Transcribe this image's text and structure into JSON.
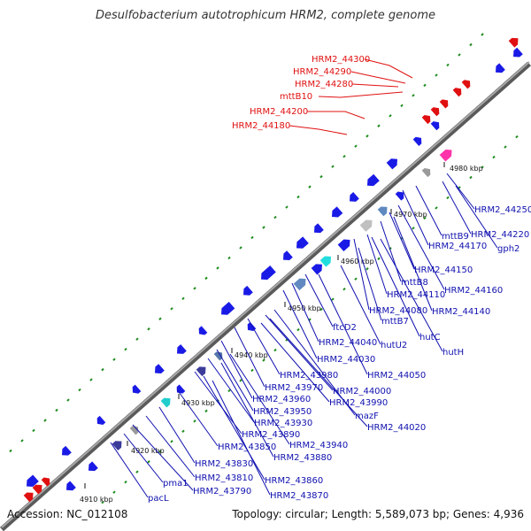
{
  "title": "Desulfobacterium autotrophicum HRM2, complete genome",
  "footer": {
    "accession": "Accession: NC_012108",
    "topology": "Topology: circular; Length: 5,589,073 bp; Genes: 4,936"
  },
  "ticks": [
    "4910 kbp",
    "4920 kbp",
    "4930 kbp",
    "4940 kbp",
    "4950 kbp",
    "4960 kbp",
    "4970 kbp",
    "4980 kbp"
  ],
  "highlight_labels": [
    "HRM2_44300",
    "HRM2_44290",
    "HRM2_44280",
    "mttB10",
    "HRM2_44200",
    "HRM2_44180"
  ],
  "gene_labels": [
    "HRM2_44250",
    "HRM2_44220",
    "gph2",
    "mttB9",
    "HRM2_44170",
    "HRM2_44150",
    "mttB8",
    "HRM2_44160",
    "HRM2_44110",
    "HRM2_44080",
    "mttB7",
    "HRM2_44140",
    "ftcD2",
    "hutC",
    "HRM2_44040",
    "hutU2",
    "hutH",
    "HRM2_44030",
    "HRM2_43980",
    "HRM2_44050",
    "HRM2_43970",
    "HRM2_44000",
    "HRM2_43960",
    "HRM2_43990",
    "HRM2_43950",
    "mazF",
    "HRM2_43930",
    "HRM2_44020",
    "HRM2_43890",
    "HRM2_43940",
    "HRM2_43850",
    "HRM2_43880",
    "HRM2_43830",
    "HRM2_43810",
    "HRM2_43860",
    "pma1",
    "HRM2_43790",
    "HRM2_43870",
    "pacL"
  ],
  "colors": {
    "gene": "#1a1ae6",
    "highlight": "#e01010",
    "backbone": "#8c8c8c",
    "tick": "#1e8c1e",
    "label_blue": "#1010b0"
  }
}
